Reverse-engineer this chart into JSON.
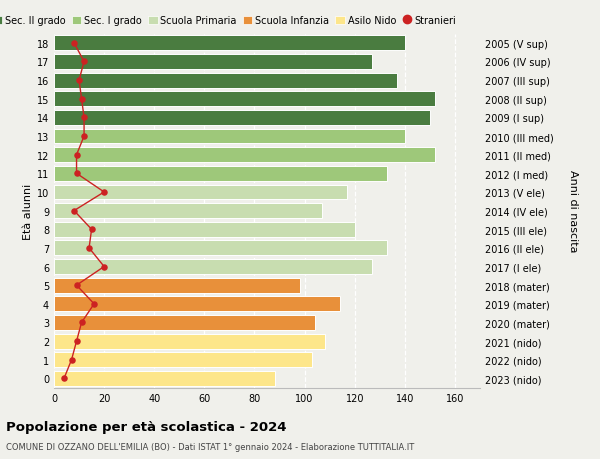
{
  "ages": [
    0,
    1,
    2,
    3,
    4,
    5,
    6,
    7,
    8,
    9,
    10,
    11,
    12,
    13,
    14,
    15,
    16,
    17,
    18
  ],
  "bar_values": [
    88,
    103,
    108,
    104,
    114,
    98,
    127,
    133,
    120,
    107,
    117,
    133,
    152,
    140,
    150,
    152,
    137,
    127,
    140
  ],
  "stranieri": [
    4,
    7,
    9,
    11,
    16,
    9,
    20,
    14,
    15,
    8,
    20,
    9,
    9,
    12,
    12,
    11,
    10,
    12,
    8
  ],
  "right_labels": [
    "2023 (nido)",
    "2022 (nido)",
    "2021 (nido)",
    "2020 (mater)",
    "2019 (mater)",
    "2018 (mater)",
    "2017 (I ele)",
    "2016 (II ele)",
    "2015 (III ele)",
    "2014 (IV ele)",
    "2013 (V ele)",
    "2012 (I med)",
    "2011 (II med)",
    "2010 (III med)",
    "2009 (I sup)",
    "2008 (II sup)",
    "2007 (III sup)",
    "2006 (IV sup)",
    "2005 (V sup)"
  ],
  "bar_colors": [
    "#fde68a",
    "#fde68a",
    "#fde68a",
    "#e8903a",
    "#e8903a",
    "#e8903a",
    "#c8ddb0",
    "#c8ddb0",
    "#c8ddb0",
    "#c8ddb0",
    "#c8ddb0",
    "#9ec87a",
    "#9ec87a",
    "#9ec87a",
    "#4a7c40",
    "#4a7c40",
    "#4a7c40",
    "#4a7c40",
    "#4a7c40"
  ],
  "legend_labels": [
    "Sec. II grado",
    "Sec. I grado",
    "Scuola Primaria",
    "Scuola Infanzia",
    "Asilo Nido",
    "Stranieri"
  ],
  "legend_colors": [
    "#4a7c40",
    "#9ec87a",
    "#c8ddb0",
    "#e8903a",
    "#fde68a",
    "#cc2222"
  ],
  "ylabel": "Età alunni",
  "right_ylabel": "Anni di nascita",
  "title": "Popolazione per età scolastica - 2024",
  "subtitle": "COMUNE DI OZZANO DELL'EMILIA (BO) - Dati ISTAT 1° gennaio 2024 - Elaborazione TUTTITALIA.IT",
  "xlim": [
    0,
    170
  ],
  "xticks": [
    0,
    20,
    40,
    60,
    80,
    100,
    120,
    140,
    160
  ],
  "stranieri_color": "#cc2222",
  "line_color": "#cc2222",
  "bg_color": "#f0f0eb"
}
